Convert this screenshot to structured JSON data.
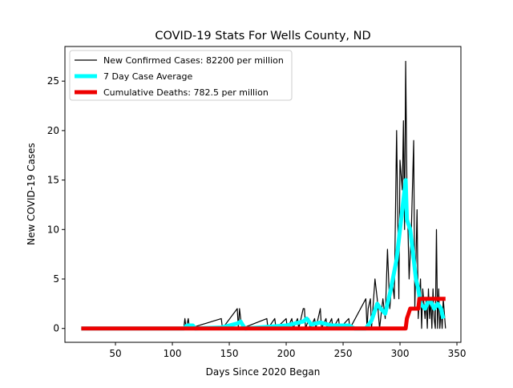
{
  "chart_data": {
    "type": "line",
    "title": "COVID-19 Stats For Wells County, ND",
    "x_label": "Days Since 2020 Began",
    "y_label": "New COVID-19 Cases",
    "xlim": [
      5.6,
      353.5
    ],
    "xticks": [
      50,
      100,
      150,
      200,
      250,
      300,
      350
    ],
    "ylim": [
      -1.4,
      28.5
    ],
    "yticks": [
      0,
      5,
      10,
      15,
      20,
      25
    ],
    "legend": "upper left",
    "series": [
      {
        "name": "New Confirmed Cases: 82200 per million",
        "color": "#000000",
        "width": 1.2,
        "x": [
          20,
          110,
          111,
          112,
          114,
          115,
          143,
          144,
          157,
          158,
          159,
          160,
          161,
          183,
          184,
          190,
          191,
          200,
          201,
          205,
          206,
          210,
          211,
          215,
          216,
          217,
          220,
          221,
          225,
          226,
          230,
          231,
          235,
          236,
          240,
          241,
          246,
          247,
          255,
          256,
          270,
          271,
          272,
          274,
          275,
          278,
          280,
          282,
          285,
          287,
          289,
          291,
          293,
          295,
          297,
          299,
          300,
          302,
          303,
          304,
          305,
          306,
          308,
          310,
          312,
          313,
          315,
          316,
          318,
          319,
          320,
          322,
          323,
          324,
          325,
          326,
          327,
          328,
          329,
          330,
          331,
          332,
          333,
          334,
          335,
          336,
          337,
          338,
          340
        ],
        "values": [
          0,
          0,
          1,
          0,
          1,
          0,
          1,
          0,
          2,
          0,
          2,
          1,
          0,
          1,
          0,
          1,
          0,
          1,
          0,
          1,
          0,
          1,
          0,
          2,
          2,
          0,
          1,
          0,
          1,
          0,
          2,
          0,
          1,
          0,
          1,
          0,
          1,
          0,
          1,
          0,
          3,
          0,
          2,
          3,
          0,
          5,
          3,
          0,
          3,
          1,
          8,
          2,
          5,
          3,
          20,
          3,
          17,
          14,
          21,
          10,
          27,
          15,
          5,
          10,
          19,
          2,
          12,
          1,
          5,
          0,
          4,
          1,
          3,
          0,
          4,
          1,
          3,
          0,
          4,
          1,
          0,
          10,
          0,
          4,
          0,
          2,
          0,
          3,
          0
        ]
      },
      {
        "name": "7 Day Case Average",
        "color": "#00ffff",
        "width": 5,
        "x": [
          20,
          110,
          113,
          118,
          120,
          143,
          157,
          160,
          162,
          164,
          200,
          215,
          218,
          222,
          230,
          240,
          255,
          260,
          270,
          275,
          280,
          283,
          287,
          292,
          297,
          300,
          303,
          305,
          306,
          309,
          312,
          314,
          316,
          318,
          322,
          326,
          330,
          333,
          336,
          338
        ],
        "values": [
          0,
          0,
          0.3,
          0.3,
          0,
          0.1,
          0.5,
          0.7,
          0.3,
          0,
          0.3,
          0.7,
          1,
          0.4,
          0.6,
          0.3,
          0.3,
          0,
          0,
          0.8,
          2.5,
          2,
          1.5,
          4,
          7,
          10,
          13,
          15,
          11,
          10,
          7,
          5,
          4,
          2.5,
          2,
          3,
          2,
          2.5,
          2,
          1
        ]
      },
      {
        "name": "Cumulative Deaths: 782.5 per million",
        "color": "#ee0000",
        "width": 5,
        "x": [
          20,
          305,
          306,
          309,
          316,
          317,
          340
        ],
        "values": [
          0,
          0,
          1,
          2,
          2,
          3,
          3
        ]
      }
    ]
  }
}
